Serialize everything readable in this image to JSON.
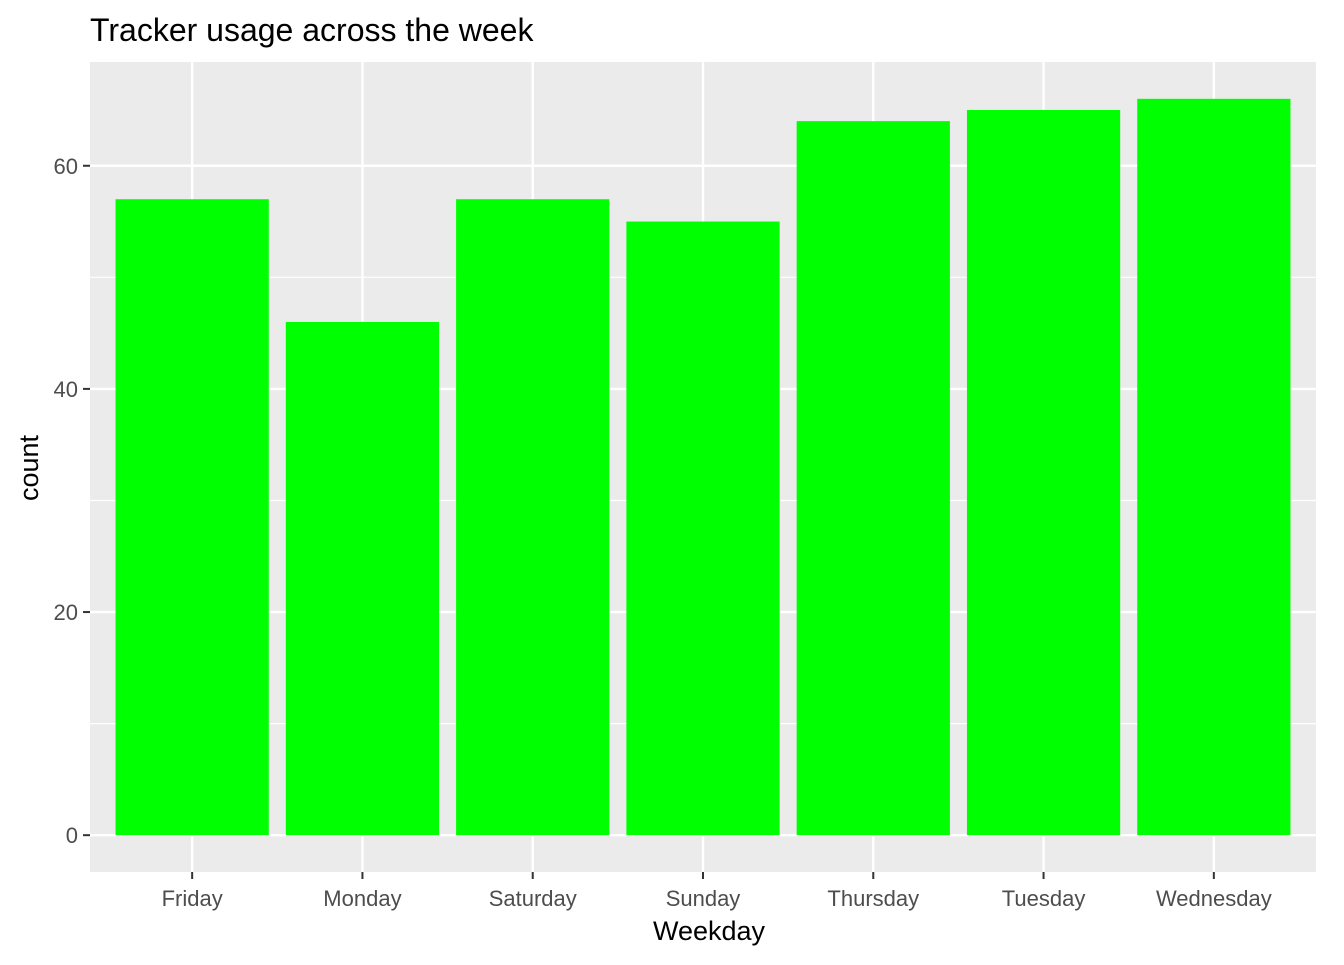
{
  "chart_data": {
    "type": "bar",
    "title": "Tracker usage across the week",
    "xlabel": "Weekday",
    "ylabel": "count",
    "categories": [
      "Friday",
      "Monday",
      "Saturday",
      "Sunday",
      "Thursday",
      "Tuesday",
      "Wednesday"
    ],
    "values": [
      57,
      46,
      57,
      55,
      64,
      65,
      66
    ],
    "yticks": [
      0,
      20,
      40,
      60
    ],
    "ylim": [
      -3.3,
      69.3
    ],
    "grid": true,
    "legend": "none",
    "colors": {
      "bar": "#00ff00",
      "panel": "#ebebeb",
      "grid": "#ffffff",
      "tick_label": "#4d4d4d",
      "tick_mark": "#333333"
    }
  }
}
